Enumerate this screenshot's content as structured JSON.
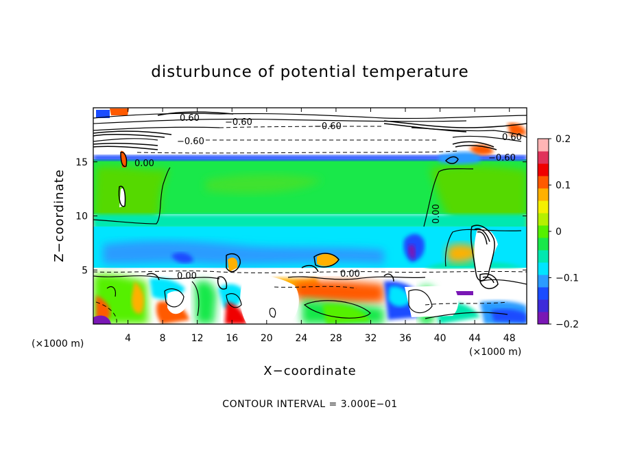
{
  "chart_data": {
    "type": "heatmap",
    "title": "disturbunce of potential temperature",
    "xlabel": "X−coordinate",
    "ylabel": "Z−coordinate",
    "x_unit": "(×1000 m)",
    "y_unit": "(×1000 m)",
    "xlim": [
      0,
      50
    ],
    "ylim": [
      0,
      20
    ],
    "x_ticks": [
      4,
      8,
      12,
      16,
      20,
      24,
      28,
      32,
      36,
      40,
      44,
      48
    ],
    "y_ticks": [
      5,
      10,
      15
    ],
    "colorbar": {
      "range": [
        -0.2,
        0.2
      ],
      "ticks": [
        0.2,
        0.1,
        0,
        -0.1,
        -0.2
      ],
      "tick_labels": [
        "0.2",
        "0.1",
        "0",
        "−0.1",
        "−0.2"
      ],
      "colors": [
        "#7a17b5",
        "#3d2bd9",
        "#1a4cff",
        "#2b9bff",
        "#00e5ff",
        "#00e8b0",
        "#19e84a",
        "#55f000",
        "#b5f000",
        "#f5f000",
        "#ffb000",
        "#ff5a00",
        "#f00000",
        "#e0335a",
        "#ffb5b5"
      ]
    },
    "contour_labels": [
      "0.60",
      "−0.60",
      "−0.60",
      "0.00",
      "0.00",
      "0.00",
      "−0.60",
      "0.00",
      "−0.60",
      "0.60"
    ],
    "contour_interval_text": "CONTOUR INTERVAL = 3.000E−01",
    "regions": [
      {
        "x": [
          0,
          50
        ],
        "z": [
          0,
          5
        ],
        "value": "mixed"
      },
      {
        "x": [
          0,
          50
        ],
        "z": [
          5,
          10
        ],
        "value": -0.08
      },
      {
        "x": [
          0,
          50
        ],
        "z": [
          10,
          15.5
        ],
        "value": 0.0
      },
      {
        "x": [
          0,
          50
        ],
        "z": [
          15.5,
          20
        ],
        "value": "below -0.2"
      }
    ]
  }
}
